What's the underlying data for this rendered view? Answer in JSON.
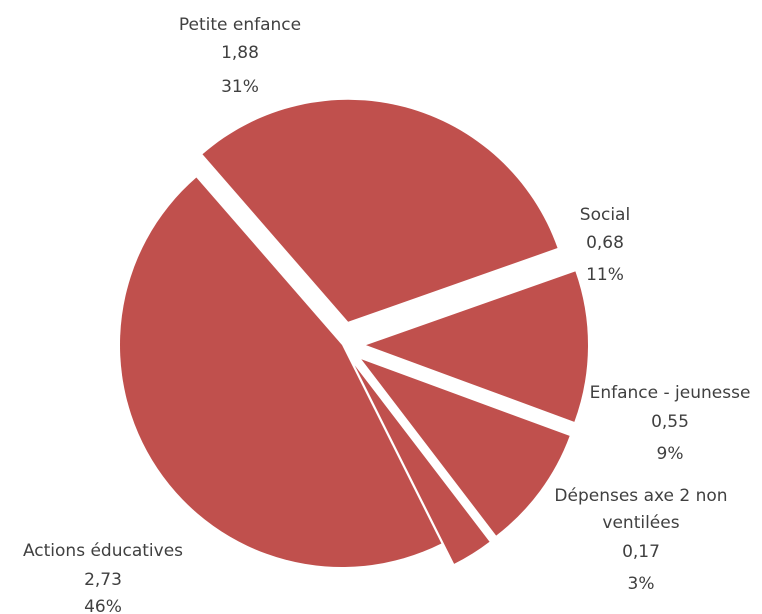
{
  "chart_data": {
    "type": "pie",
    "color": "#c0504d",
    "slices": [
      {
        "category": "Petite enfance",
        "value": "1,88",
        "percent": "31%",
        "fraction": 0.31
      },
      {
        "category": "Social",
        "value": "0,68",
        "percent": "11%",
        "fraction": 0.11
      },
      {
        "category": "Enfance - jeunesse",
        "value": "0,55",
        "percent": "9%",
        "fraction": 0.09
      },
      {
        "category_lines": [
          "Dépenses axe 2 non",
          "ventilées"
        ],
        "value": "0,17",
        "percent": "3%",
        "fraction": 0.03
      },
      {
        "category": "Actions éducatives",
        "value": "2,73",
        "percent": "46%",
        "fraction": 0.46
      }
    ]
  }
}
